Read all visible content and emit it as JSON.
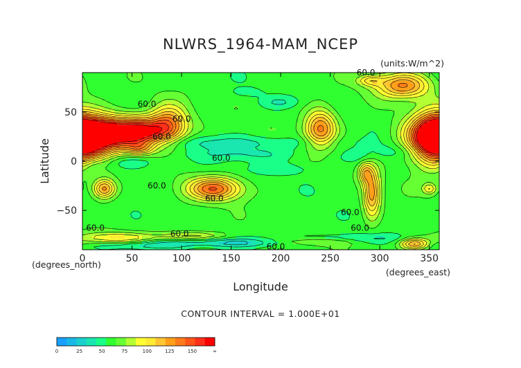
{
  "chart_data": {
    "type": "contour-map",
    "title": "NLWRS_1964-MAM_NCEP",
    "units_label": "(units:W/m^2)",
    "xlabel": "Longitude",
    "ylabel": "Latitude",
    "x_unit_label": "(degrees_east)",
    "y_unit_label": "(degrees_north)",
    "xlim": [
      0,
      360
    ],
    "ylim": [
      -90,
      90
    ],
    "x_ticks": [
      {
        "value": 0,
        "label": "0"
      },
      {
        "value": 50,
        "label": "50"
      },
      {
        "value": 100,
        "label": "100"
      },
      {
        "value": 150,
        "label": "150"
      },
      {
        "value": 200,
        "label": "200"
      },
      {
        "value": 250,
        "label": "250"
      },
      {
        "value": 300,
        "label": "300"
      },
      {
        "value": 350,
        "label": "350"
      }
    ],
    "y_ticks": [
      {
        "value": 50,
        "label": "50"
      },
      {
        "value": 0,
        "label": "0"
      },
      {
        "value": -50,
        "label": "−50"
      }
    ],
    "contour_interval_text": "CONTOUR INTERVAL = 1.000E+01",
    "background_level": 55,
    "contour_labels": [
      {
        "lon": 65,
        "lat": 58,
        "text": "60.0"
      },
      {
        "lon": 100,
        "lat": 43,
        "text": "60.0"
      },
      {
        "lon": 80,
        "lat": 25,
        "text": "60.0"
      },
      {
        "lon": 140,
        "lat": 3,
        "text": "60.0"
      },
      {
        "lon": 75,
        "lat": -25,
        "text": "60.0"
      },
      {
        "lon": 133,
        "lat": -38,
        "text": "60.0"
      },
      {
        "lon": 270,
        "lat": -52,
        "text": "60.0"
      },
      {
        "lon": 280,
        "lat": -68,
        "text": "60.0"
      },
      {
        "lon": 13,
        "lat": -68,
        "text": "60.0"
      },
      {
        "lon": 98,
        "lat": -74,
        "text": "60.0"
      },
      {
        "lon": 195,
        "lat": -87,
        "text": "60.0"
      },
      {
        "lon": 286,
        "lat": 90,
        "text": "60.0"
      }
    ],
    "features": [
      {
        "lon": 5,
        "lat": 25,
        "rlon": 24,
        "rlat": 13,
        "peak": 138
      },
      {
        "lon": 35,
        "lat": 29,
        "rlon": 24,
        "rlat": 11,
        "peak": 132
      },
      {
        "lon": 65,
        "lat": 30,
        "rlon": 20,
        "rlat": 10,
        "peak": 120
      },
      {
        "lon": 88,
        "lat": 39,
        "rlon": 13,
        "rlat": 13,
        "peak": 110
      },
      {
        "lon": 58,
        "lat": 13,
        "rlon": 10,
        "rlat": 5,
        "peak": 90
      },
      {
        "lon": 240,
        "lat": 33,
        "rlon": 11,
        "rlat": 13,
        "peak": 125
      },
      {
        "lon": 355,
        "lat": 23,
        "rlon": 16,
        "rlat": 19,
        "peak": 145
      },
      {
        "lon": 323,
        "lat": 77,
        "rlon": 19,
        "rlat": 9,
        "peak": 120
      },
      {
        "lon": 290,
        "lat": 82,
        "rlon": 9,
        "rlat": 4,
        "peak": 88
      },
      {
        "lon": 133,
        "lat": -28,
        "rlon": 19,
        "rlat": 8,
        "peak": 128
      },
      {
        "lon": 22,
        "lat": -28,
        "rlon": 8,
        "rlat": 7,
        "peak": 118
      },
      {
        "lon": 292,
        "lat": -32,
        "rlon": 6,
        "rlat": 17,
        "peak": 118
      },
      {
        "lon": 285,
        "lat": -12,
        "rlon": 5,
        "rlat": 7,
        "peak": 95
      },
      {
        "lon": 350,
        "lat": -28,
        "rlon": 5,
        "rlat": 4,
        "peak": 88
      },
      {
        "lon": 30,
        "lat": -78,
        "rlon": 28,
        "rlat": 4,
        "peak": 92
      },
      {
        "lon": 110,
        "lat": -76,
        "rlon": 24,
        "rlat": 3,
        "peak": 85
      },
      {
        "lon": 230,
        "lat": -82,
        "rlon": 28,
        "rlat": 3,
        "peak": 85
      },
      {
        "lon": 335,
        "lat": -84,
        "rlon": 10,
        "rlat": 4,
        "peak": 110
      },
      {
        "lon": 150,
        "lat": 19,
        "rlon": 75,
        "rlat": 5,
        "peak": 38
      },
      {
        "lon": 165,
        "lat": 7,
        "rlon": 40,
        "rlat": 5,
        "peak": 40
      },
      {
        "lon": 200,
        "lat": 60,
        "rlon": 14,
        "rlat": 4,
        "peak": 42
      },
      {
        "lon": 165,
        "lat": 70,
        "rlon": 10,
        "rlat": 3,
        "peak": 44
      },
      {
        "lon": 45,
        "lat": -1,
        "rlon": 20,
        "rlat": 5,
        "peak": 40
      },
      {
        "lon": 10,
        "lat": -5,
        "rlon": 8,
        "rlat": 6,
        "peak": 42
      },
      {
        "lon": 200,
        "lat": -8,
        "rlon": 25,
        "rlat": 4,
        "peak": 44
      },
      {
        "lon": 320,
        "lat": 10,
        "rlon": 20,
        "rlat": 5,
        "peak": 44
      },
      {
        "lon": 280,
        "lat": 5,
        "rlon": 14,
        "rlat": 5,
        "peak": 44
      },
      {
        "lon": 160,
        "lat": -83,
        "rlon": 60,
        "rlat": 3,
        "peak": 30
      },
      {
        "lon": 60,
        "lat": -86,
        "rlon": 30,
        "rlat": 3,
        "peak": 35
      },
      {
        "lon": 270,
        "lat": -78,
        "rlon": 60,
        "rlat": 3,
        "peak": 40
      }
    ],
    "colorbar": {
      "levels": [
        0,
        10,
        20,
        30,
        40,
        50,
        60,
        70,
        80,
        90,
        100,
        110,
        120,
        130,
        140,
        150,
        160
      ],
      "colors": [
        "#1aa0ff",
        "#1ab8e6",
        "#1ad0cc",
        "#1ae6b0",
        "#1aff88",
        "#30ff30",
        "#66ff33",
        "#b3ff33",
        "#ffff33",
        "#ffeb33",
        "#ffc533",
        "#ff9f1a",
        "#ff7a1a",
        "#ff551a",
        "#ff301a",
        "#ff0000"
      ],
      "tick_labels": [
        "0",
        "25",
        "50",
        "75",
        "100",
        "125",
        "150",
        "∞"
      ]
    }
  }
}
